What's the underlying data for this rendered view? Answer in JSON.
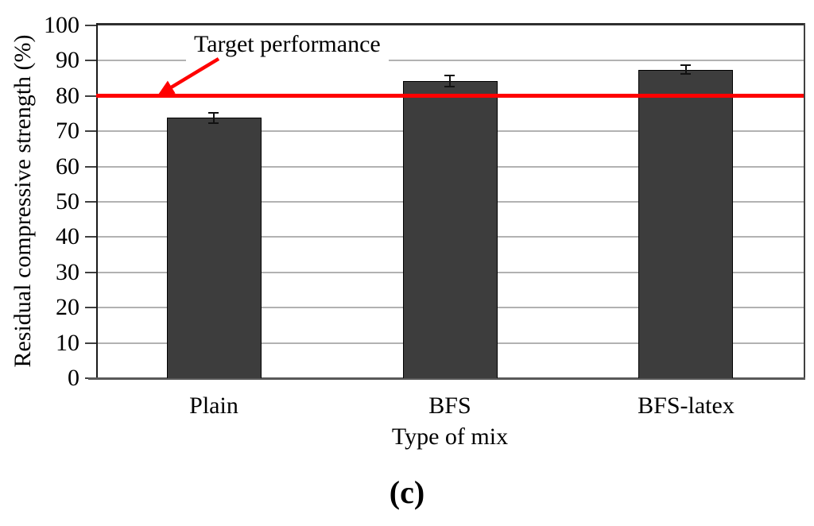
{
  "chart_data": {
    "type": "bar",
    "title": "",
    "categories": [
      "Plain",
      "BFS",
      "BFS-latex"
    ],
    "values": [
      73.8,
      84.2,
      87.5
    ],
    "error_bars": [
      1.5,
      1.5,
      1.2
    ],
    "xlabel": "Type of mix",
    "ylabel": "Residual compressive strength (%)",
    "ylim": [
      0,
      100
    ],
    "ytick_interval": 10,
    "grid": true,
    "legend": "none",
    "reference_line": {
      "value": 80,
      "label": "Target performance"
    },
    "colors": {
      "bar_fill": "#3d3d3d",
      "bar_border": "#000000",
      "reference_line": "#ff0000",
      "gridline": "#b2b2b2",
      "axis": "#404040",
      "axis_bottom": "#595959",
      "error_bar": "#111111",
      "text": "#000000"
    }
  },
  "caption": "(c)"
}
